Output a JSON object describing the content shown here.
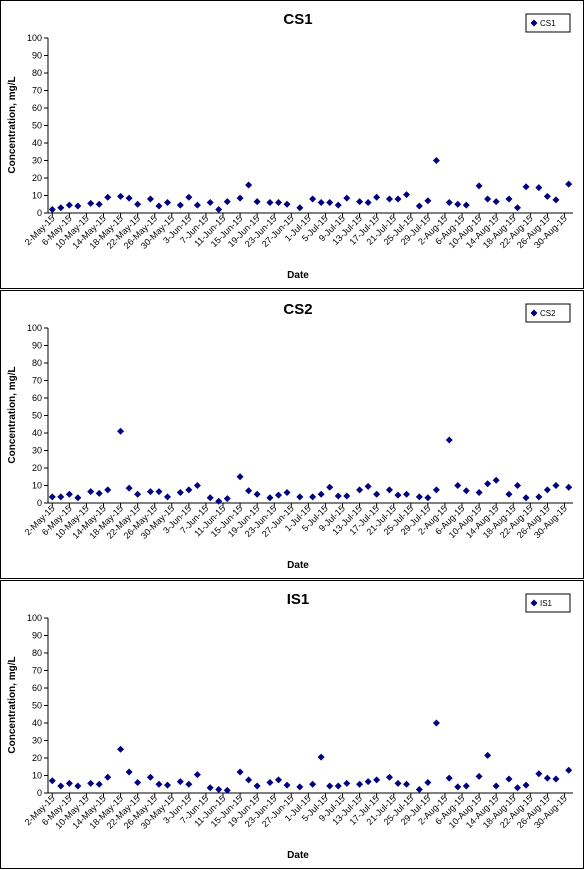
{
  "chart_data": [
    {
      "type": "scatter",
      "title": "CS1",
      "xlabel": "Date",
      "ylabel": "Concentration, mg/L",
      "ylim": [
        0,
        100
      ],
      "yticks": [
        0,
        10,
        20,
        30,
        40,
        50,
        60,
        70,
        80,
        90,
        100
      ],
      "xlim": [
        "2015-05-01",
        "2015-09-01"
      ],
      "xtick_labels": [
        "2-May-15",
        "6-May-15",
        "10-May-15",
        "14-May-15",
        "18-May-15",
        "22-May-15",
        "26-May-15",
        "30-May-15",
        "3-Jun-15",
        "7-Jun-15",
        "11-Jun-15",
        "15-Jun-15",
        "19-Jun-15",
        "23-Jun-15",
        "27-Jun-15",
        "1-Jul-15",
        "5-Jul-15",
        "9-Jul-15",
        "13-Jul-15",
        "17-Jul-15",
        "21-Jul-15",
        "25-Jul-15",
        "29-Jul-15",
        "2-Aug-15",
        "6-Aug-15",
        "10-Aug-15",
        "14-Aug-15",
        "18-Aug-15",
        "22-Aug-15",
        "26-Aug-15",
        "30-Aug-15"
      ],
      "grid": false,
      "legend_position": "top-right",
      "marker_color": "#000080",
      "series": [
        {
          "name": "CS1",
          "x": [
            "2015-05-02",
            "2015-05-04",
            "2015-05-06",
            "2015-05-08",
            "2015-05-11",
            "2015-05-13",
            "2015-05-15",
            "2015-05-18",
            "2015-05-20",
            "2015-05-22",
            "2015-05-25",
            "2015-05-27",
            "2015-05-29",
            "2015-06-01",
            "2015-06-03",
            "2015-06-05",
            "2015-06-08",
            "2015-06-10",
            "2015-06-12",
            "2015-06-15",
            "2015-06-17",
            "2015-06-19",
            "2015-06-22",
            "2015-06-24",
            "2015-06-26",
            "2015-06-29",
            "2015-07-02",
            "2015-07-04",
            "2015-07-06",
            "2015-07-08",
            "2015-07-10",
            "2015-07-13",
            "2015-07-15",
            "2015-07-17",
            "2015-07-20",
            "2015-07-22",
            "2015-07-24",
            "2015-07-27",
            "2015-07-29",
            "2015-07-31",
            "2015-08-03",
            "2015-08-05",
            "2015-08-07",
            "2015-08-10",
            "2015-08-12",
            "2015-08-14",
            "2015-08-17",
            "2015-08-19",
            "2015-08-21",
            "2015-08-24",
            "2015-08-26",
            "2015-08-28",
            "2015-08-31"
          ],
          "y": [
            2,
            3,
            4.5,
            4,
            5.5,
            5,
            9,
            9.5,
            8.5,
            5,
            8,
            4,
            6,
            4.5,
            9,
            4.5,
            6,
            2,
            6.5,
            8.5,
            16,
            6.5,
            6,
            6,
            5,
            3,
            8,
            6,
            6,
            4.5,
            8.5,
            6.5,
            6,
            9,
            8,
            8,
            10.5,
            4,
            7,
            30,
            6,
            5,
            4.5,
            15.5,
            8,
            6.5,
            8,
            3,
            15,
            14.5,
            9.5,
            7.5,
            16.5
          ]
        }
      ]
    },
    {
      "type": "scatter",
      "title": "CS2",
      "xlabel": "Date",
      "ylabel": "Concentration, mg/L",
      "ylim": [
        0,
        100
      ],
      "yticks": [
        0,
        10,
        20,
        30,
        40,
        50,
        60,
        70,
        80,
        90,
        100
      ],
      "xlim": [
        "2015-05-01",
        "2015-09-01"
      ],
      "xtick_labels": [
        "2-May-15",
        "6-May-15",
        "10-May-15",
        "14-May-15",
        "18-May-15",
        "22-May-15",
        "26-May-15",
        "30-May-15",
        "3-Jun-15",
        "7-Jun-15",
        "11-Jun-15",
        "15-Jun-15",
        "19-Jun-15",
        "23-Jun-15",
        "27-Jun-15",
        "1-Jul-15",
        "5-Jul-15",
        "9-Jul-15",
        "13-Jul-15",
        "17-Jul-15",
        "21-Jul-15",
        "25-Jul-15",
        "29-Jul-15",
        "2-Aug-15",
        "6-Aug-15",
        "10-Aug-15",
        "14-Aug-15",
        "18-Aug-15",
        "22-Aug-15",
        "26-Aug-15",
        "30-Aug-15"
      ],
      "grid": false,
      "legend_position": "top-right",
      "marker_color": "#000080",
      "series": [
        {
          "name": "CS2",
          "x": [
            "2015-05-02",
            "2015-05-04",
            "2015-05-06",
            "2015-05-08",
            "2015-05-11",
            "2015-05-13",
            "2015-05-15",
            "2015-05-18",
            "2015-05-20",
            "2015-05-22",
            "2015-05-25",
            "2015-05-27",
            "2015-05-29",
            "2015-06-01",
            "2015-06-03",
            "2015-06-05",
            "2015-06-08",
            "2015-06-10",
            "2015-06-12",
            "2015-06-15",
            "2015-06-17",
            "2015-06-19",
            "2015-06-22",
            "2015-06-24",
            "2015-06-26",
            "2015-06-29",
            "2015-07-02",
            "2015-07-04",
            "2015-07-06",
            "2015-07-08",
            "2015-07-10",
            "2015-07-13",
            "2015-07-15",
            "2015-07-17",
            "2015-07-20",
            "2015-07-22",
            "2015-07-24",
            "2015-07-27",
            "2015-07-29",
            "2015-07-31",
            "2015-08-03",
            "2015-08-05",
            "2015-08-07",
            "2015-08-10",
            "2015-08-12",
            "2015-08-14",
            "2015-08-17",
            "2015-08-19",
            "2015-08-21",
            "2015-08-24",
            "2015-08-26",
            "2015-08-28",
            "2015-08-31"
          ],
          "y": [
            3.5,
            3.5,
            5,
            3,
            6.5,
            5.5,
            7.5,
            41,
            8.5,
            5,
            6.5,
            6.5,
            3.5,
            6,
            7.5,
            10,
            3,
            1,
            2.5,
            15,
            7,
            5,
            3,
            4.5,
            6,
            3.5,
            3.5,
            5,
            9,
            4,
            4,
            7.5,
            9.5,
            5,
            7.5,
            4.5,
            5,
            3.5,
            3,
            7.5,
            36,
            10,
            7,
            6,
            11,
            13,
            5,
            10,
            3,
            3.5,
            7.5,
            10,
            9
          ]
        }
      ]
    },
    {
      "type": "scatter",
      "title": "IS1",
      "xlabel": "Date",
      "ylabel": "Concentration, mg/L",
      "ylim": [
        0,
        100
      ],
      "yticks": [
        0,
        10,
        20,
        30,
        40,
        50,
        60,
        70,
        80,
        90,
        100
      ],
      "xlim": [
        "2015-05-01",
        "2015-09-01"
      ],
      "xtick_labels": [
        "2-May-15",
        "6-May-15",
        "10-May-15",
        "14-May-15",
        "18-May-15",
        "22-May-15",
        "26-May-15",
        "30-May-15",
        "3-Jun-15",
        "7-Jun-15",
        "11-Jun-15",
        "15-Jun-15",
        "19-Jun-15",
        "23-Jun-15",
        "27-Jun-15",
        "1-Jul-15",
        "5-Jul-15",
        "9-Jul-15",
        "13-Jul-15",
        "17-Jul-15",
        "21-Jul-15",
        "25-Jul-15",
        "29-Jul-15",
        "2-Aug-15",
        "6-Aug-15",
        "10-Aug-15",
        "14-Aug-15",
        "18-Aug-15",
        "22-Aug-15",
        "26-Aug-15",
        "30-Aug-15"
      ],
      "grid": false,
      "legend_position": "top-right",
      "marker_color": "#000080",
      "series": [
        {
          "name": "IS1",
          "x": [
            "2015-05-02",
            "2015-05-04",
            "2015-05-06",
            "2015-05-08",
            "2015-05-11",
            "2015-05-13",
            "2015-05-15",
            "2015-05-18",
            "2015-05-20",
            "2015-05-22",
            "2015-05-25",
            "2015-05-27",
            "2015-05-29",
            "2015-06-01",
            "2015-06-03",
            "2015-06-05",
            "2015-06-08",
            "2015-06-10",
            "2015-06-12",
            "2015-06-15",
            "2015-06-17",
            "2015-06-19",
            "2015-06-22",
            "2015-06-24",
            "2015-06-26",
            "2015-06-29",
            "2015-07-02",
            "2015-07-04",
            "2015-07-06",
            "2015-07-08",
            "2015-07-10",
            "2015-07-13",
            "2015-07-15",
            "2015-07-17",
            "2015-07-20",
            "2015-07-22",
            "2015-07-24",
            "2015-07-27",
            "2015-07-29",
            "2015-07-31",
            "2015-08-03",
            "2015-08-05",
            "2015-08-07",
            "2015-08-10",
            "2015-08-12",
            "2015-08-14",
            "2015-08-17",
            "2015-08-19",
            "2015-08-21",
            "2015-08-24",
            "2015-08-26",
            "2015-08-28",
            "2015-08-31"
          ],
          "y": [
            7,
            4,
            5.5,
            4,
            5.5,
            5,
            9,
            25,
            12,
            6,
            9,
            5,
            4.5,
            6.5,
            5,
            10.5,
            3,
            2,
            1.5,
            12,
            7.5,
            4,
            6,
            7.5,
            4.5,
            3.5,
            5,
            20.5,
            4,
            4,
            5.5,
            5,
            6.5,
            7.5,
            9,
            5.5,
            5,
            2,
            6,
            40,
            8.5,
            3.5,
            4,
            9.5,
            21.5,
            4,
            8,
            3,
            4.5,
            11,
            8.5,
            8,
            13
          ]
        }
      ]
    }
  ]
}
